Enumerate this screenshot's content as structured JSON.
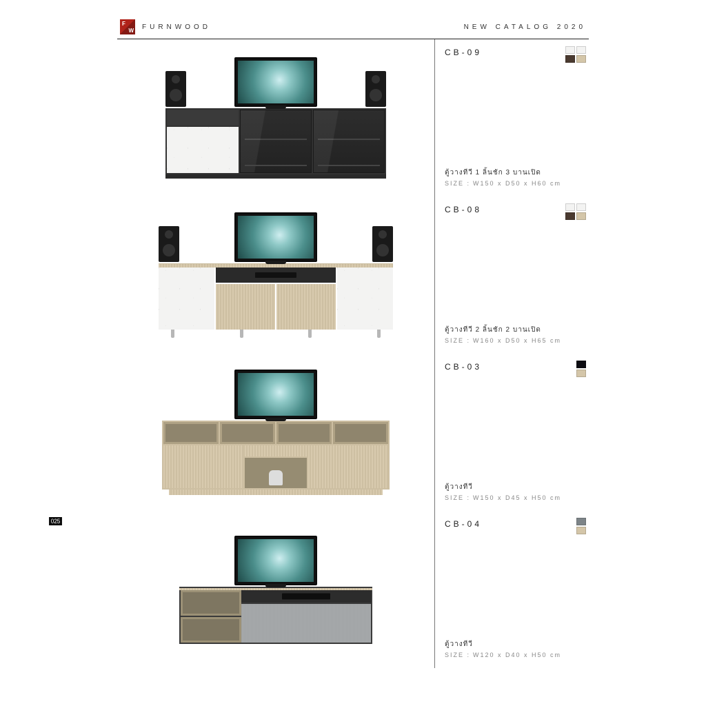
{
  "header": {
    "brand_name": "FURNWOOD",
    "catalog_title": "NEW CATALOG 2020",
    "logo_letters": {
      "top": "F",
      "bottom": "W"
    },
    "logo_bg": "#b0231a"
  },
  "page_number": "025",
  "colors": {
    "text_primary": "#333333",
    "text_muted": "#888888",
    "rule": "#222222",
    "divider": "#777777",
    "marble": "#f3f3f2",
    "oak": "#d4c6a9",
    "dark": "#2a2a2a",
    "grey_fabric": "#a9acae"
  },
  "products": [
    {
      "code": "CB-09",
      "description": "ตู้วางทีวี 1 ลิ้นชัก 3 บานเปิด",
      "size_label": "SIZE :",
      "size": "W150 x D50 x H60 cm",
      "swatches": [
        [
          "#f3f3f2",
          "#f3f3f2"
        ],
        [
          "#4a3a30",
          "#d4c6a9"
        ]
      ]
    },
    {
      "code": "CB-08",
      "description": "ตู้วางทีวี 2 ลิ้นชัก 2 บานเปิด",
      "size_label": "SIZE :",
      "size": "W160 x D50 x H65 cm",
      "swatches": [
        [
          "#f3f3f2",
          "#f3f3f2"
        ],
        [
          "#4a3a30",
          "#d4c6a9"
        ]
      ]
    },
    {
      "code": "CB-03",
      "description": "ตู้วางทีวี",
      "size_label": "SIZE :",
      "size": "W150 x D45 x H50 cm",
      "swatches": [
        [
          "#0c0c12"
        ],
        [
          "#d4c6a9"
        ]
      ]
    },
    {
      "code": "CB-04",
      "description": "ตู้วางทีวี",
      "size_label": "SIZE :",
      "size": "W120 x D40 x H50 cm",
      "swatches": [
        [
          "#7d8488"
        ],
        [
          "#d4c6a9"
        ]
      ]
    }
  ]
}
